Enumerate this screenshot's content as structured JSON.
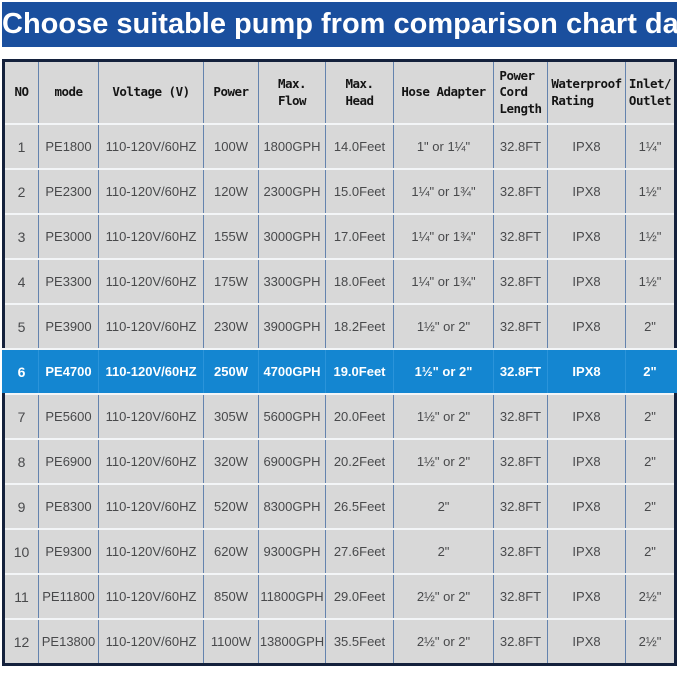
{
  "banner": {
    "title": "Choose suitable pump from comparison chart data"
  },
  "colors": {
    "banner-bg": "#1a4f9e",
    "banner-text": "#ffffff",
    "highlight-bg": "#1486d1",
    "highlight-text": "#ffffff",
    "cell-bg": "#d8d8d8",
    "grid-vertical": "#6483ae",
    "grid-horizontal": "#f3f5f7",
    "outer-border": "#14213c",
    "data-text": "#48494b"
  },
  "table": {
    "header_labels": {
      "no": "NO",
      "mode": "mode",
      "voltage": "Voltage (V)",
      "power": "Power",
      "max_flow": "Max.\nFlow",
      "max_head": "Max.\nHead",
      "hose_adapter": "Hose Adapter",
      "power_cord_length": "Power\nCord\nLength",
      "waterproof_rating": "Waterproof\nRating",
      "inlet_outlet": "Inlet/\nOutlet"
    },
    "highlight_index": 5
  },
  "chart_data": {
    "type": "table",
    "title": "Choose suitable pump from comparison chart data",
    "columns": [
      "NO",
      "mode",
      "Voltage (V)",
      "Power",
      "Max. Flow",
      "Max. Head",
      "Hose Adapter",
      "Power Cord Length",
      "Waterproof Rating",
      "Inlet/Outlet"
    ],
    "highlighted_row_no": "6",
    "rows": [
      [
        "1",
        "PE1800",
        "110-120V/60HZ",
        "100W",
        "1800GPH",
        "14.0Feet",
        "1\" or 1¼\"",
        "32.8FT",
        "IPX8",
        "1¼\""
      ],
      [
        "2",
        "PE2300",
        "110-120V/60HZ",
        "120W",
        "2300GPH",
        "15.0Feet",
        "1¼\" or 1¾\"",
        "32.8FT",
        "IPX8",
        "1½\""
      ],
      [
        "3",
        "PE3000",
        "110-120V/60HZ",
        "155W",
        "3000GPH",
        "17.0Feet",
        "1¼\" or 1¾\"",
        "32.8FT",
        "IPX8",
        "1½\""
      ],
      [
        "4",
        "PE3300",
        "110-120V/60HZ",
        "175W",
        "3300GPH",
        "18.0Feet",
        "1¼\" or 1¾\"",
        "32.8FT",
        "IPX8",
        "1½\""
      ],
      [
        "5",
        "PE3900",
        "110-120V/60HZ",
        "230W",
        "3900GPH",
        "18.2Feet",
        "1½\" or 2\"",
        "32.8FT",
        "IPX8",
        "2\""
      ],
      [
        "6",
        "PE4700",
        "110-120V/60HZ",
        "250W",
        "4700GPH",
        "19.0Feet",
        "1½\" or 2\"",
        "32.8FT",
        "IPX8",
        "2\""
      ],
      [
        "7",
        "PE5600",
        "110-120V/60HZ",
        "305W",
        "5600GPH",
        "20.0Feet",
        "1½\" or 2\"",
        "32.8FT",
        "IPX8",
        "2\""
      ],
      [
        "8",
        "PE6900",
        "110-120V/60HZ",
        "320W",
        "6900GPH",
        "20.2Feet",
        "1½\" or 2\"",
        "32.8FT",
        "IPX8",
        "2\""
      ],
      [
        "9",
        "PE8300",
        "110-120V/60HZ",
        "520W",
        "8300GPH",
        "26.5Feet",
        "2\"",
        "32.8FT",
        "IPX8",
        "2\""
      ],
      [
        "10",
        "PE9300",
        "110-120V/60HZ",
        "620W",
        "9300GPH",
        "27.6Feet",
        "2\"",
        "32.8FT",
        "IPX8",
        "2\""
      ],
      [
        "11",
        "PE11800",
        "110-120V/60HZ",
        "850W",
        "11800GPH",
        "29.0Feet",
        "2½\" or 2\"",
        "32.8FT",
        "IPX8",
        "2½\""
      ],
      [
        "12",
        "PE13800",
        "110-120V/60HZ",
        "1100W",
        "13800GPH",
        "35.5Feet",
        "2½\" or 2\"",
        "32.8FT",
        "IPX8",
        "2½\""
      ]
    ]
  }
}
